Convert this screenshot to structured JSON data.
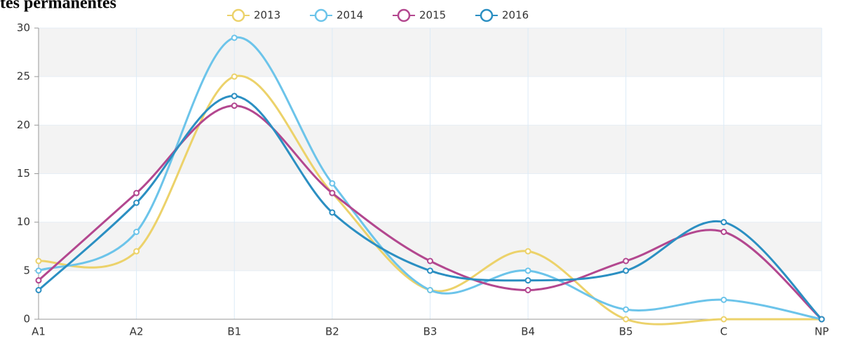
{
  "chart_data": {
    "type": "line",
    "title": "tes permanentes",
    "categories": [
      "A1",
      "A2",
      "B1",
      "B2",
      "B3",
      "B4",
      "B5",
      "C",
      "NP"
    ],
    "series": [
      {
        "name": "2013",
        "color": "#ecd26a",
        "values": [
          6,
          7,
          25,
          13,
          3,
          7,
          0,
          0,
          0
        ]
      },
      {
        "name": "2014",
        "color": "#6cc4ea",
        "values": [
          5,
          9,
          29,
          14,
          3,
          5,
          1,
          2,
          0
        ]
      },
      {
        "name": "2015",
        "color": "#b3478f",
        "values": [
          4,
          13,
          22,
          13,
          6,
          3,
          6,
          9,
          0
        ]
      },
      {
        "name": "2016",
        "color": "#2b8fc2",
        "values": [
          3,
          12,
          23,
          11,
          5,
          4,
          5,
          10,
          0
        ]
      }
    ],
    "ylim": [
      0,
      30
    ],
    "yticks": [
      0,
      5,
      10,
      15,
      20,
      25,
      30
    ],
    "grid": true,
    "legend": "top"
  }
}
